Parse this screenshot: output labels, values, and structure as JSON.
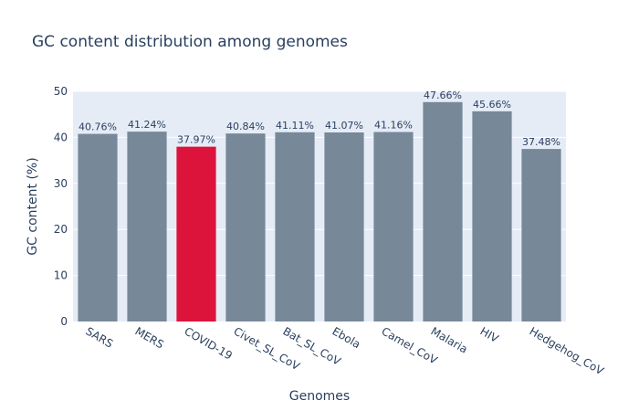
{
  "chart_data": {
    "type": "bar",
    "title": "GC content distribution among genomes",
    "xlabel": "Genomes",
    "ylabel": "GC content (%)",
    "ylim": [
      0,
      50
    ],
    "yticks": [
      0,
      10,
      20,
      30,
      40,
      50
    ],
    "grid": true,
    "categories": [
      "SARS",
      "MERS",
      "COVID-19",
      "Civet_SL_CoV",
      "Bat_SL_CoV",
      "Ebola",
      "Camel_CoV",
      "Malaria",
      "HIV",
      "Hedgehog_CoV"
    ],
    "values": [
      40.76,
      41.24,
      37.97,
      40.84,
      41.11,
      41.07,
      41.16,
      47.66,
      45.66,
      37.48
    ],
    "data_labels": [
      "40.76%",
      "41.24%",
      "37.97%",
      "40.84%",
      "41.11%",
      "41.07%",
      "41.16%",
      "47.66%",
      "45.66%",
      "37.48%"
    ],
    "colors": [
      "#778899",
      "#778899",
      "#dc143c",
      "#778899",
      "#778899",
      "#778899",
      "#778899",
      "#778899",
      "#778899",
      "#778899"
    ],
    "plot_background": "#e5ecf6"
  }
}
